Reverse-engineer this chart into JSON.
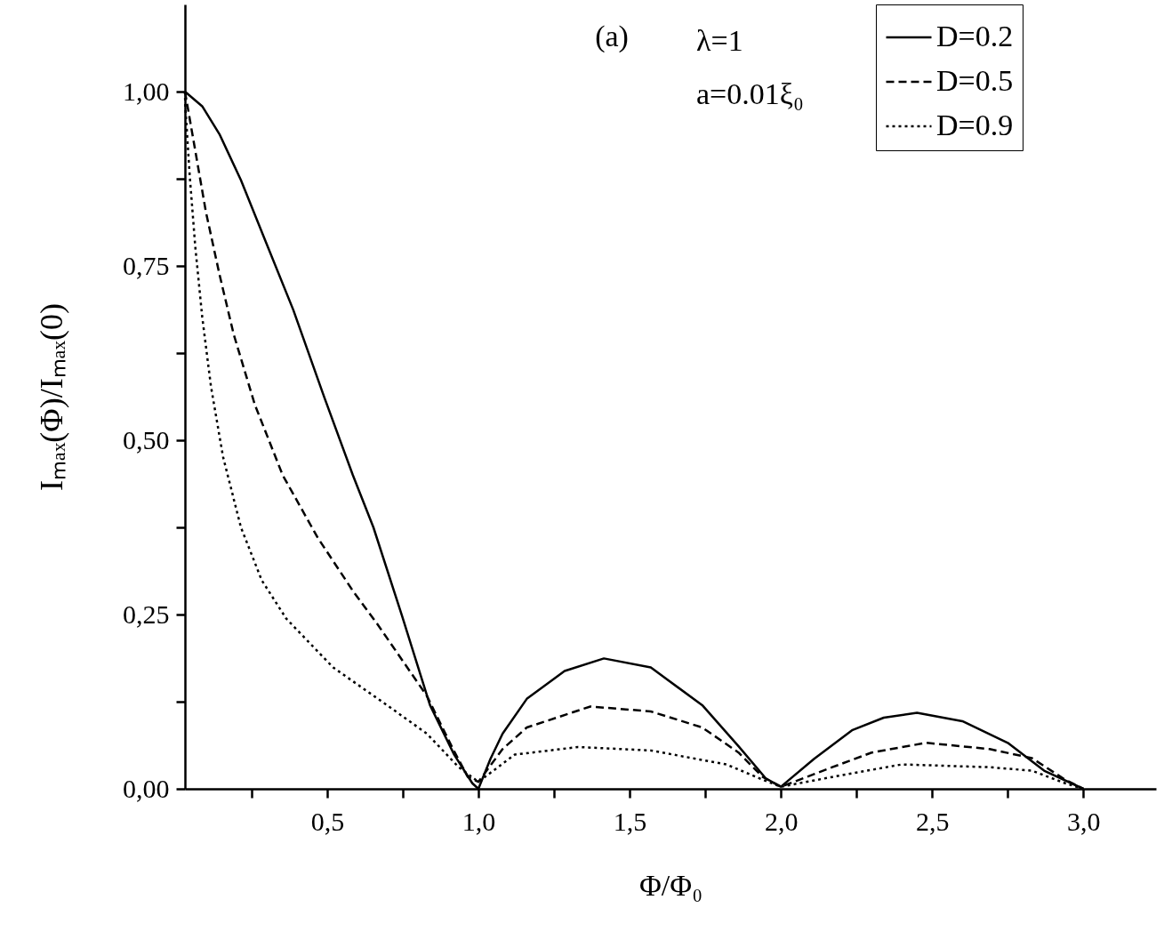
{
  "chart_data": {
    "type": "line",
    "xlabel": "Φ/Φ₀",
    "ylabel": "Iₘₐₓ(Φ)/Iₘₐₓ(0)",
    "annotations": [
      "(a)",
      "λ=1",
      "a=0.01ξ₀"
    ],
    "xlim": [
      0.03,
      3.24
    ],
    "ylim": [
      0,
      1.125
    ],
    "xticks": [
      {
        "value": 0.25,
        "label": null
      },
      {
        "value": 0.5,
        "label": "0,5"
      },
      {
        "value": 0.75,
        "label": null
      },
      {
        "value": 1,
        "label": "1,0"
      },
      {
        "value": 1.25,
        "label": null
      },
      {
        "value": 1.5,
        "label": "1,5"
      },
      {
        "value": 1.75,
        "label": null
      },
      {
        "value": 2,
        "label": "2,0"
      },
      {
        "value": 2.25,
        "label": null
      },
      {
        "value": 2.5,
        "label": "2,5"
      },
      {
        "value": 2.75,
        "label": null
      },
      {
        "value": 3,
        "label": "3,0"
      }
    ],
    "yticks": [
      {
        "value": 0,
        "label": "0,00"
      },
      {
        "value": 0.125,
        "label": null
      },
      {
        "value": 0.25,
        "label": "0,25"
      },
      {
        "value": 0.375,
        "label": null
      },
      {
        "value": 0.5,
        "label": "0,50"
      },
      {
        "value": 0.625,
        "label": null
      },
      {
        "value": 0.75,
        "label": "0,75"
      },
      {
        "value": 0.875,
        "label": null
      },
      {
        "value": 1,
        "label": "1,00"
      }
    ],
    "grid": false,
    "legend": "top right",
    "marker": "none",
    "series": [
      {
        "name": "D=0.2",
        "color": "#000000",
        "line_style": "solid",
        "x": [
          0.03,
          0.087,
          0.144,
          0.215,
          0.294,
          0.388,
          0.491,
          0.585,
          0.653,
          0.747,
          0.84,
          0.92,
          0.98,
          1.0,
          1.04,
          1.08,
          1.16,
          1.285,
          1.415,
          1.57,
          1.74,
          1.86,
          1.95,
          2.0,
          2.11,
          2.235,
          2.34,
          2.45,
          2.6,
          2.75,
          2.87,
          3.0
        ],
        "values": [
          1.0,
          0.979,
          0.939,
          0.873,
          0.788,
          0.687,
          0.561,
          0.45,
          0.375,
          0.249,
          0.12,
          0.049,
          0.008,
          0.0,
          0.043,
          0.079,
          0.129,
          0.169,
          0.187,
          0.174,
          0.12,
          0.061,
          0.015,
          0.003,
          0.043,
          0.084,
          0.102,
          0.109,
          0.097,
          0.066,
          0.026,
          0.0
        ]
      },
      {
        "name": "D=0.5",
        "color": "#000000",
        "line_style": "dashed",
        "x": [
          0.03,
          0.059,
          0.099,
          0.144,
          0.191,
          0.261,
          0.353,
          0.469,
          0.585,
          0.665,
          0.83,
          0.915,
          0.965,
          1.0,
          1.08,
          1.16,
          1.37,
          1.57,
          1.74,
          1.86,
          1.94,
          2.0,
          2.17,
          2.3,
          2.48,
          2.69,
          2.83,
          2.94,
          3.0
        ],
        "values": [
          1.0,
          0.928,
          0.828,
          0.738,
          0.652,
          0.551,
          0.45,
          0.36,
          0.284,
          0.237,
          0.133,
          0.058,
          0.017,
          0.01,
          0.057,
          0.088,
          0.118,
          0.111,
          0.088,
          0.052,
          0.017,
          0.003,
          0.031,
          0.052,
          0.066,
          0.057,
          0.044,
          0.013,
          0.0
        ]
      },
      {
        "name": "D=0.9",
        "color": "#000000",
        "line_style": "dotted",
        "x": [
          0.03,
          0.031,
          0.046,
          0.064,
          0.087,
          0.116,
          0.156,
          0.215,
          0.284,
          0.365,
          0.52,
          0.685,
          0.83,
          0.935,
          1.0,
          1.12,
          1.33,
          1.57,
          1.82,
          1.94,
          2.0,
          2.17,
          2.4,
          2.69,
          2.83,
          2.94,
          3.0
        ],
        "values": [
          1.0,
          0.98,
          0.878,
          0.778,
          0.677,
          0.577,
          0.476,
          0.375,
          0.299,
          0.244,
          0.174,
          0.124,
          0.079,
          0.031,
          0.01,
          0.049,
          0.06,
          0.055,
          0.035,
          0.013,
          0.003,
          0.017,
          0.035,
          0.031,
          0.026,
          0.008,
          0.0
        ]
      }
    ]
  }
}
